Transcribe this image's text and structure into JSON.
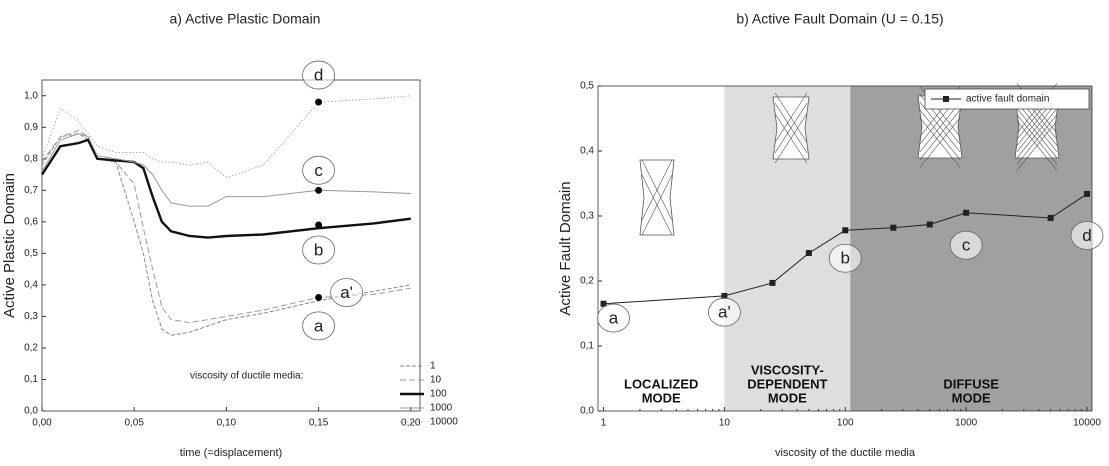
{
  "chart_data": [
    {
      "type": "line",
      "title": "a) Active Plastic Domain",
      "x_label": "time (=displacement)",
      "y_label": "Active Plastic Domain",
      "x": [
        0,
        0.01,
        0.02,
        0.025,
        0.03,
        0.04,
        0.05,
        0.055,
        0.06,
        0.065,
        0.07,
        0.08,
        0.09,
        0.1,
        0.12,
        0.15,
        0.18,
        0.2
      ],
      "series": [
        {
          "name": "1",
          "color": "#888888",
          "style": "dash",
          "values": [
            0.78,
            0.87,
            0.88,
            0.86,
            0.8,
            0.79,
            0.6,
            0.5,
            0.35,
            0.26,
            0.24,
            0.25,
            0.27,
            0.29,
            0.31,
            0.35,
            0.38,
            0.4
          ]
        },
        {
          "name": "10",
          "color": "#999999",
          "style": "longdash",
          "values": [
            0.79,
            0.87,
            0.89,
            0.87,
            0.8,
            0.79,
            0.72,
            0.58,
            0.45,
            0.33,
            0.29,
            0.28,
            0.29,
            0.3,
            0.32,
            0.36,
            0.37,
            0.39
          ]
        },
        {
          "name": "100",
          "color": "#111111",
          "style": "thick",
          "values": [
            0.75,
            0.84,
            0.85,
            0.86,
            0.8,
            0.795,
            0.79,
            0.77,
            0.68,
            0.6,
            0.57,
            0.555,
            0.55,
            0.555,
            0.56,
            0.58,
            0.595,
            0.61
          ]
        },
        {
          "name": "1000",
          "color": "#999999",
          "style": "solid",
          "values": [
            0.76,
            0.86,
            0.88,
            0.87,
            0.81,
            0.8,
            0.79,
            0.78,
            0.75,
            0.7,
            0.66,
            0.65,
            0.65,
            0.68,
            0.68,
            0.7,
            0.695,
            0.69
          ]
        },
        {
          "name": "10000",
          "color": "#aaaaaa",
          "style": "dot",
          "values": [
            0.8,
            0.96,
            0.92,
            0.88,
            0.84,
            0.82,
            0.82,
            0.82,
            0.8,
            0.79,
            0.79,
            0.78,
            0.79,
            0.74,
            0.78,
            0.98,
            0.99,
            1.0
          ]
        }
      ],
      "legend_title": "viscosity of ductile media:",
      "legend": "lower right",
      "annotations": [
        {
          "text": "d",
          "x": 0.15,
          "y": 0.98
        },
        {
          "text": "c",
          "x": 0.15,
          "y": 0.7
        },
        {
          "text": "b",
          "x": 0.15,
          "y": 0.59
        },
        {
          "text": "a'",
          "x": 0.15,
          "y": 0.36
        },
        {
          "text": "a"
        }
      ],
      "xlim": [
        0,
        0.205
      ],
      "ylim": [
        0,
        1.05
      ],
      "xticks": [
        {
          "value": 0,
          "label": "0,00"
        },
        {
          "value": 0.05,
          "label": "0,05"
        },
        {
          "value": 0.1,
          "label": "0,10"
        },
        {
          "value": 0.15,
          "label": "0,15"
        },
        {
          "value": 0.2,
          "label": "0,20"
        }
      ],
      "yticks": [
        {
          "value": 0,
          "label": "0,0"
        },
        {
          "value": 0.1,
          "label": "0,1"
        },
        {
          "value": 0.2,
          "label": "0,2"
        },
        {
          "value": 0.3,
          "label": "0,3"
        },
        {
          "value": 0.4,
          "label": "0,4"
        },
        {
          "value": 0.5,
          "label": "0,5"
        },
        {
          "value": 0.6,
          "label": "0,6"
        },
        {
          "value": 0.7,
          "label": "0,7"
        },
        {
          "value": 0.8,
          "label": "0,8"
        },
        {
          "value": 0.9,
          "label": "0,9"
        },
        {
          "value": 1.0,
          "label": "1,0"
        }
      ]
    },
    {
      "type": "line",
      "title": "b) Active Fault Domain (U = 0.15)",
      "x_label": "viscosity of the ductile media",
      "y_label": "Active Fault Domain",
      "log_x": true,
      "legend": "upper right",
      "series": [
        {
          "name": "active fault domain",
          "color": "#222222",
          "style": "solid",
          "marker": "square",
          "x": [
            1,
            10,
            25,
            50,
            100,
            250,
            500,
            1000,
            5000,
            10000
          ],
          "values": [
            0.165,
            0.177,
            0.197,
            0.243,
            0.278,
            0.282,
            0.287,
            0.305,
            0.297,
            0.334
          ]
        }
      ],
      "regions": [
        {
          "label": [
            "LOCALIZED",
            "MODE"
          ],
          "x": [
            0.9,
            10
          ],
          "color": "#ffffff"
        },
        {
          "label": [
            "VISCOSITY-",
            "DEPENDENT",
            "MODE"
          ],
          "x": [
            10,
            110
          ],
          "color": "#dedede"
        },
        {
          "label": [
            "DIFFUSE",
            "MODE"
          ],
          "x": [
            110,
            11000
          ],
          "color": "#a0a0a0"
        }
      ],
      "annotations": [
        {
          "text": "a",
          "x": 1,
          "y": 0.143
        },
        {
          "text": "a'",
          "x": 10,
          "y": 0.152
        },
        {
          "text": "b",
          "x": 100,
          "y": 0.235
        },
        {
          "text": "c",
          "x": 1000,
          "y": 0.255
        },
        {
          "text": "d",
          "x": 10000,
          "y": 0.27
        }
      ],
      "xlim": [
        0.9,
        11000
      ],
      "ylim": [
        0,
        0.5
      ],
      "xticks": [
        1,
        10,
        100,
        1000,
        10000
      ],
      "yticks": [
        {
          "value": 0,
          "label": "0,0"
        },
        {
          "value": 0.1,
          "label": "0,1"
        },
        {
          "value": 0.2,
          "label": "0,2"
        },
        {
          "value": 0.3,
          "label": "0,3"
        },
        {
          "value": 0.4,
          "label": "0,4"
        },
        {
          "value": 0.5,
          "label": "0,5"
        }
      ]
    }
  ]
}
